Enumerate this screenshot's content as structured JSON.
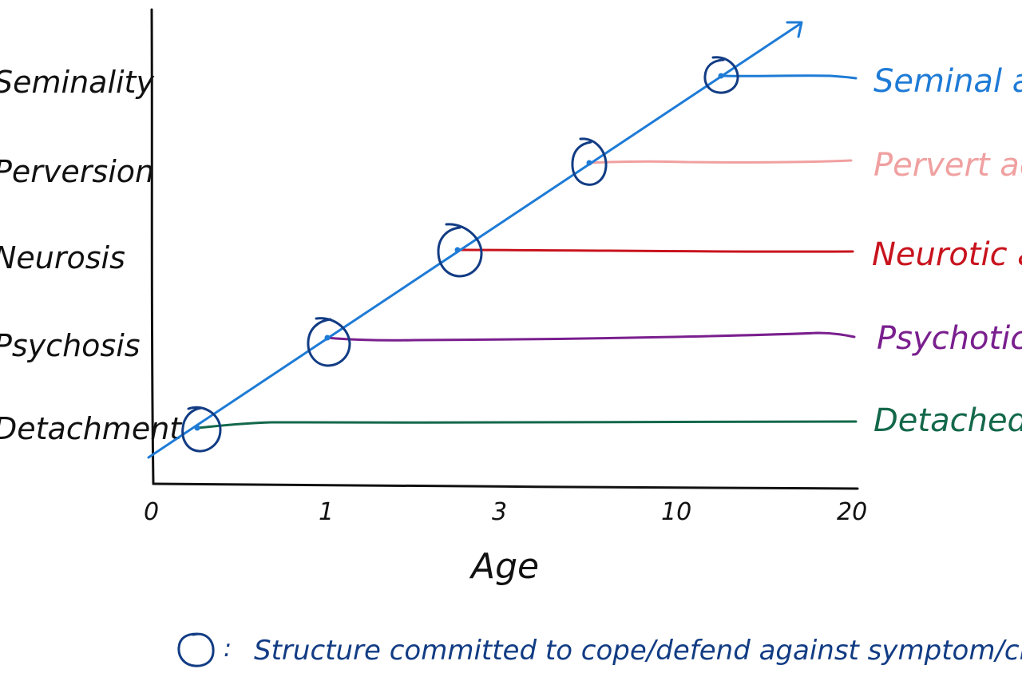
{
  "diagram": {
    "y_labels": [
      "Seminality",
      "Perversion",
      "Neurosis",
      "Psychosis",
      "Detachment"
    ],
    "x_ticks": [
      "0",
      "1",
      "3",
      "10",
      "20"
    ],
    "x_label": "Age",
    "branches": [
      {
        "label": "Seminal adult",
        "color": "#1e7bd6"
      },
      {
        "label": "Pervert adult",
        "color": "#f0a0a0"
      },
      {
        "label": "Neurotic adult",
        "color": "#c8141e"
      },
      {
        "label": "Psychotic adult",
        "color": "#7a1f8e"
      },
      {
        "label": "Detached adult",
        "color": "#13684a"
      }
    ],
    "legend": {
      "separator": ":",
      "text": "Structure committed to cope/defend against symptom/crisis"
    },
    "colors": {
      "axis": "#111111",
      "main_line": "#1e7bd6",
      "circle": "#123c84",
      "legend_text": "#123c84"
    }
  }
}
